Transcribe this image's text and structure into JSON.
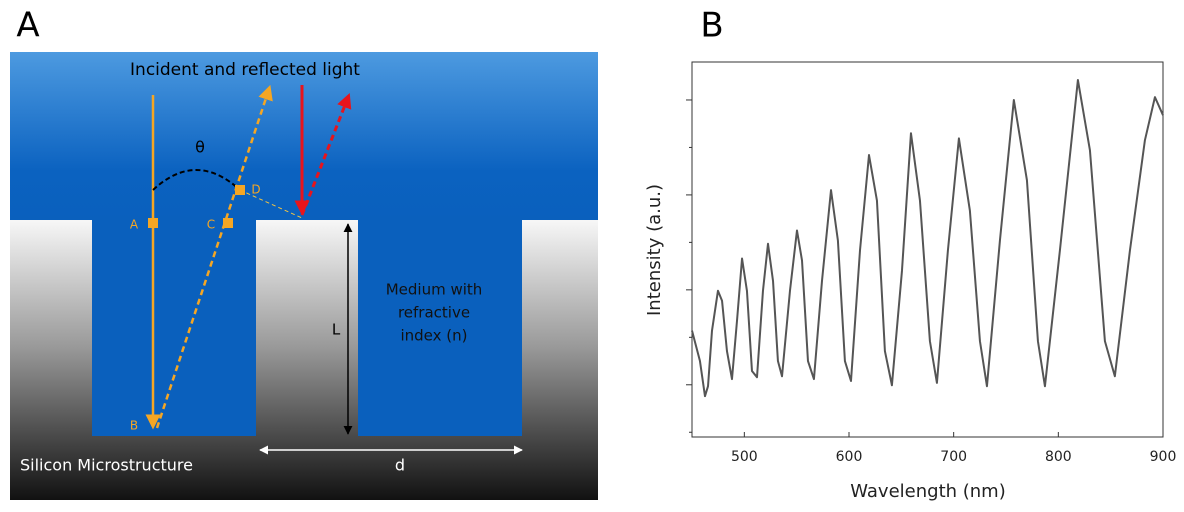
{
  "panel_labels": [
    "A",
    "B"
  ],
  "diagram": {
    "title": "Incident and reflected light",
    "angle": "θ",
    "points": [
      "A",
      "B",
      "C",
      "D"
    ],
    "length": "L",
    "medium": [
      "Medium with",
      "refractive",
      "index (n)"
    ],
    "substrate": "Silicon Microstructure",
    "spacing": "d"
  },
  "chart_data": {
    "type": "line",
    "x_label": "Wavelength (nm)",
    "y_label": "Intensity (a.u.)",
    "color": "#555555",
    "x": [
      450,
      457.6,
      462.4,
      465.3,
      469.1,
      474.8,
      478.7,
      483.4,
      488.2,
      493.0,
      497.8,
      502.5,
      507.3,
      512.1,
      517.8,
      522.6,
      527.4,
      532.1,
      536.0,
      543.6,
      550.3,
      555.1,
      560.8,
      566.5,
      574.2,
      582.8,
      589.4,
      596.1,
      601.9,
      610.5,
      619.1,
      626.7,
      634.3,
      641.0,
      650.6,
      659.2,
      667.8,
      677.3,
      684.0,
      694.5,
      705.0,
      715.5,
      725.1,
      731.8,
      744.2,
      757.5,
      770.0,
      780.5,
      787.2,
      801.5,
      818.7,
      830.2,
      844.5,
      854.0,
      868.4,
      882.7,
      892.3,
      900
    ],
    "values": [
      3.14,
      2.5,
      1.76,
      1.97,
      3.14,
      3.98,
      3.77,
      2.71,
      2.12,
      3.35,
      4.66,
      3.98,
      2.29,
      2.16,
      3.98,
      4.97,
      4.19,
      2.5,
      2.18,
      3.98,
      5.25,
      4.62,
      2.5,
      2.12,
      4.19,
      6.1,
      5.04,
      2.5,
      2.08,
      4.83,
      6.84,
      5.88,
      2.71,
      1.99,
      4.4,
      7.3,
      5.88,
      2.92,
      2.04,
      4.83,
      7.19,
      5.67,
      2.92,
      1.97,
      5.04,
      8.0,
      6.31,
      2.92,
      1.97,
      4.83,
      8.42,
      6.94,
      2.92,
      2.18,
      4.83,
      7.15,
      8.06,
      7.68
    ],
    "xlim": [
      450,
      900
    ],
    "xticks": [
      500,
      600,
      700,
      800,
      900
    ],
    "ylim": [
      0.9,
      8.8
    ],
    "yticks": [
      1,
      2,
      3,
      4,
      5,
      6,
      7,
      8
    ]
  }
}
